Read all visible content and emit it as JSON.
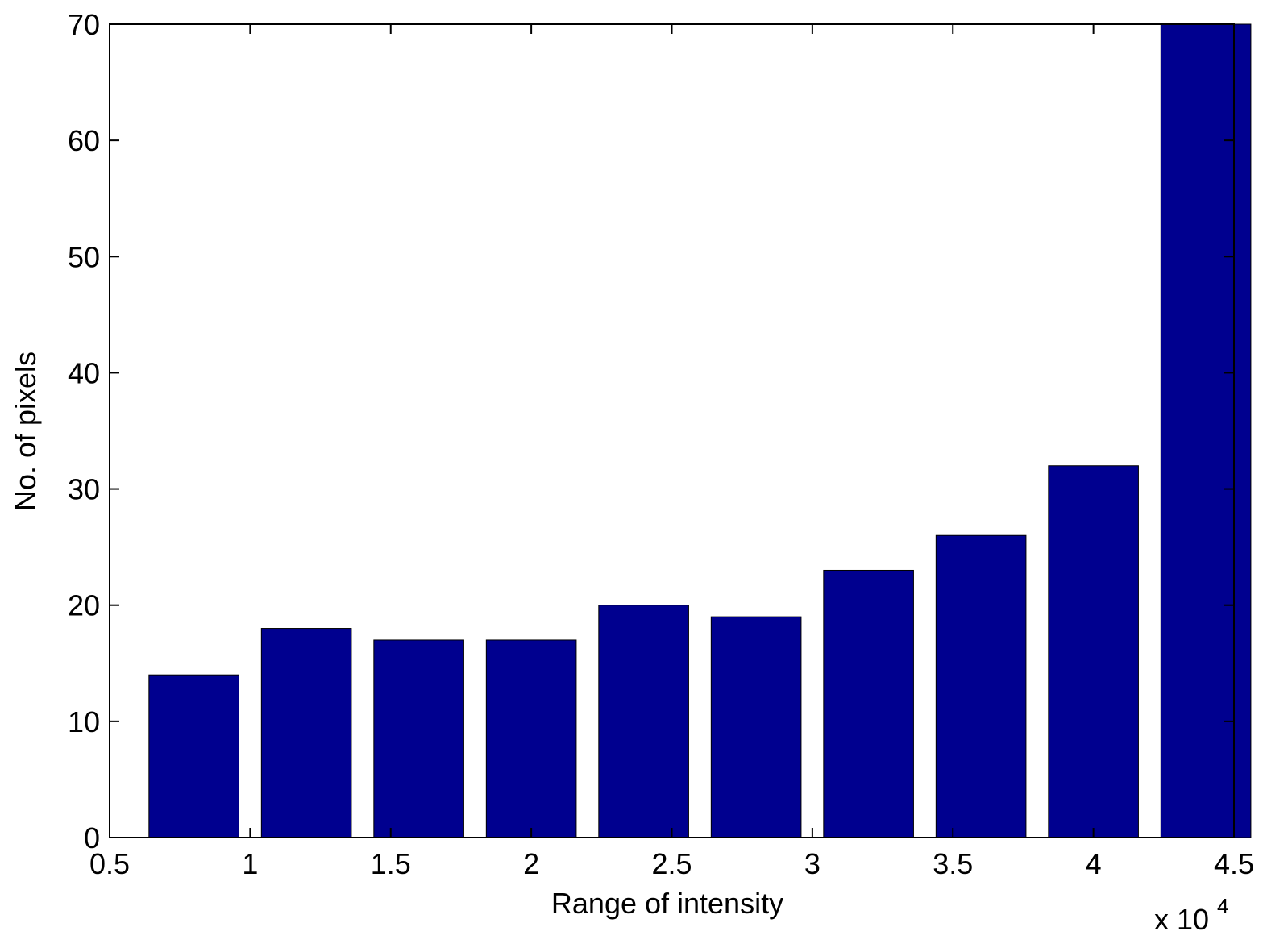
{
  "chart_data": {
    "type": "bar",
    "title": "",
    "xlabel": "Range of intensity",
    "ylabel": "No. of pixels",
    "x_multiplier": {
      "base": "x 10",
      "exponent": "4"
    },
    "x": [
      0.8,
      1.2,
      1.6,
      2.0,
      2.4,
      2.8,
      3.2,
      3.6,
      4.0,
      4.4
    ],
    "values": [
      14,
      18,
      17,
      17,
      20,
      19,
      23,
      26,
      32,
      70
    ],
    "xlim": [
      0.5,
      4.5
    ],
    "ylim": [
      0,
      70
    ],
    "xticks": [
      "0.5",
      "1",
      "1.5",
      "2",
      "2.5",
      "3",
      "3.5",
      "4",
      "4.5"
    ],
    "yticks": [
      "0",
      "10",
      "20",
      "30",
      "40",
      "50",
      "60",
      "70"
    ],
    "grid": false,
    "bar_color": "#00008f"
  }
}
